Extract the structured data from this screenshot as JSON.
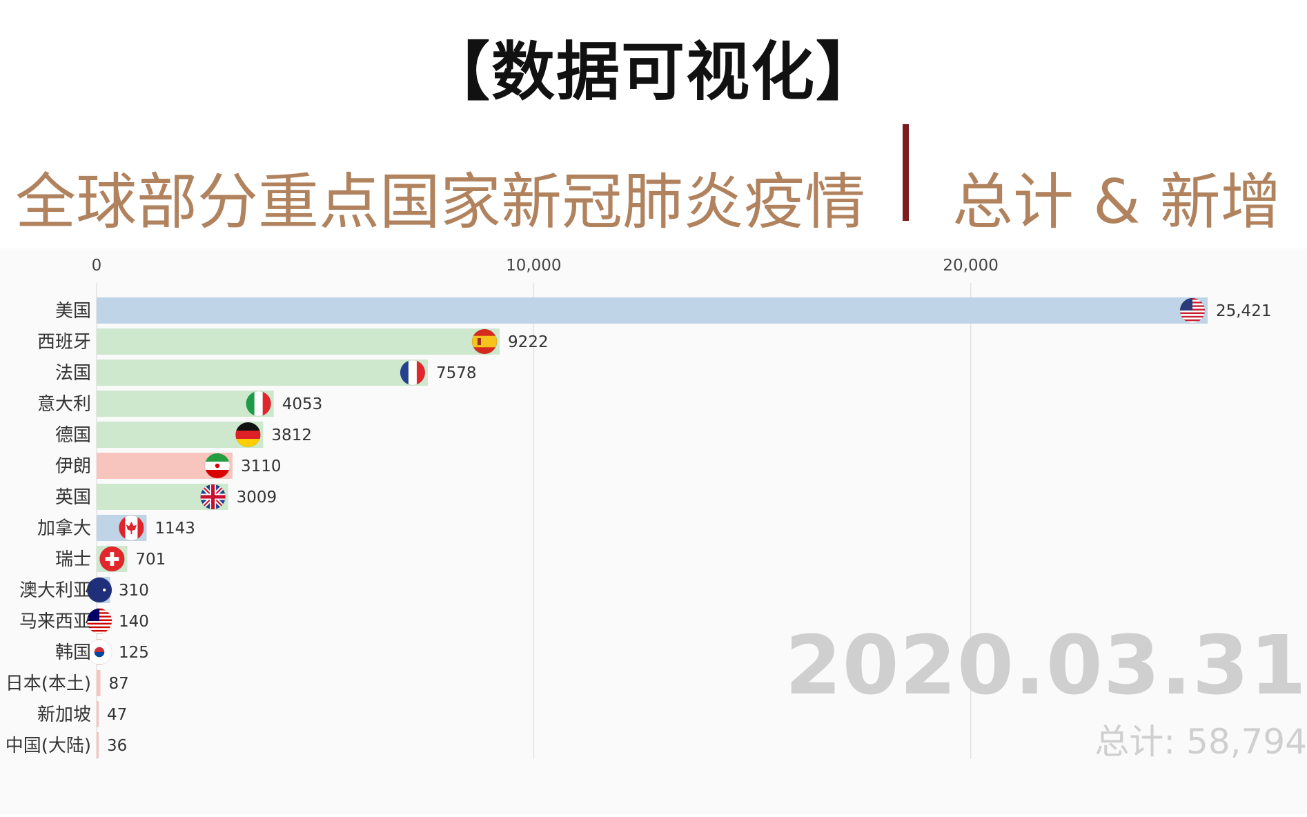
{
  "header": {
    "title": "【数据可视化】",
    "subtitle_left": "全球部分重点国家新冠肺炎疫情",
    "subtitle_right": "总计 & 新增"
  },
  "overlay": {
    "date": "2020.03.31",
    "total": "总计: 58,794"
  },
  "colors": {
    "subtitle": "#b0825d",
    "divider": "#7b1a1f",
    "americas_bar": "#c0d4e8",
    "europe_bar": "#cde8cc",
    "asia_bar": "#f7c5bd",
    "watermark": "#cfcfcf"
  },
  "chart_data": {
    "type": "bar",
    "orientation": "horizontal",
    "xlim": [
      0,
      27000
    ],
    "x_ticks": [
      0,
      10000,
      20000
    ],
    "x_tick_labels": [
      "0",
      "10,000",
      "20,000"
    ],
    "grid": true,
    "categories": [
      "美国",
      "西班牙",
      "法国",
      "意大利",
      "德国",
      "伊朗",
      "英国",
      "加拿大",
      "瑞士",
      "澳大利亚",
      "马来西亚",
      "韩国",
      "日本(本土)",
      "新加坡",
      "中国(大陆)"
    ],
    "values": [
      25421,
      9222,
      7578,
      4053,
      3812,
      3110,
      3009,
      1143,
      701,
      310,
      140,
      125,
      87,
      47,
      36
    ],
    "value_labels": [
      "25,421",
      "9222",
      "7578",
      "4053",
      "3812",
      "3110",
      "3009",
      "1143",
      "701",
      "310",
      "140",
      "125",
      "87",
      "47",
      "36"
    ],
    "bar_colors": [
      "#c0d4e8",
      "#cde8cc",
      "#cde8cc",
      "#cde8cc",
      "#cde8cc",
      "#f7c5bd",
      "#cde8cc",
      "#c0d4e8",
      "#cde8cc",
      "#c0d4e8",
      "#f7c5bd",
      "#f7c5bd",
      "#f7c5bd",
      "#f7c5bd",
      "#f7c5bd"
    ],
    "flag_icons": [
      "us-flag-icon",
      "spain-flag-icon",
      "france-flag-icon",
      "italy-flag-icon",
      "germany-flag-icon",
      "iran-flag-icon",
      "uk-flag-icon",
      "canada-flag-icon",
      "switzerland-flag-icon",
      "australia-flag-icon",
      "malaysia-flag-icon",
      "korea-flag-icon",
      "",
      "",
      ""
    ]
  }
}
